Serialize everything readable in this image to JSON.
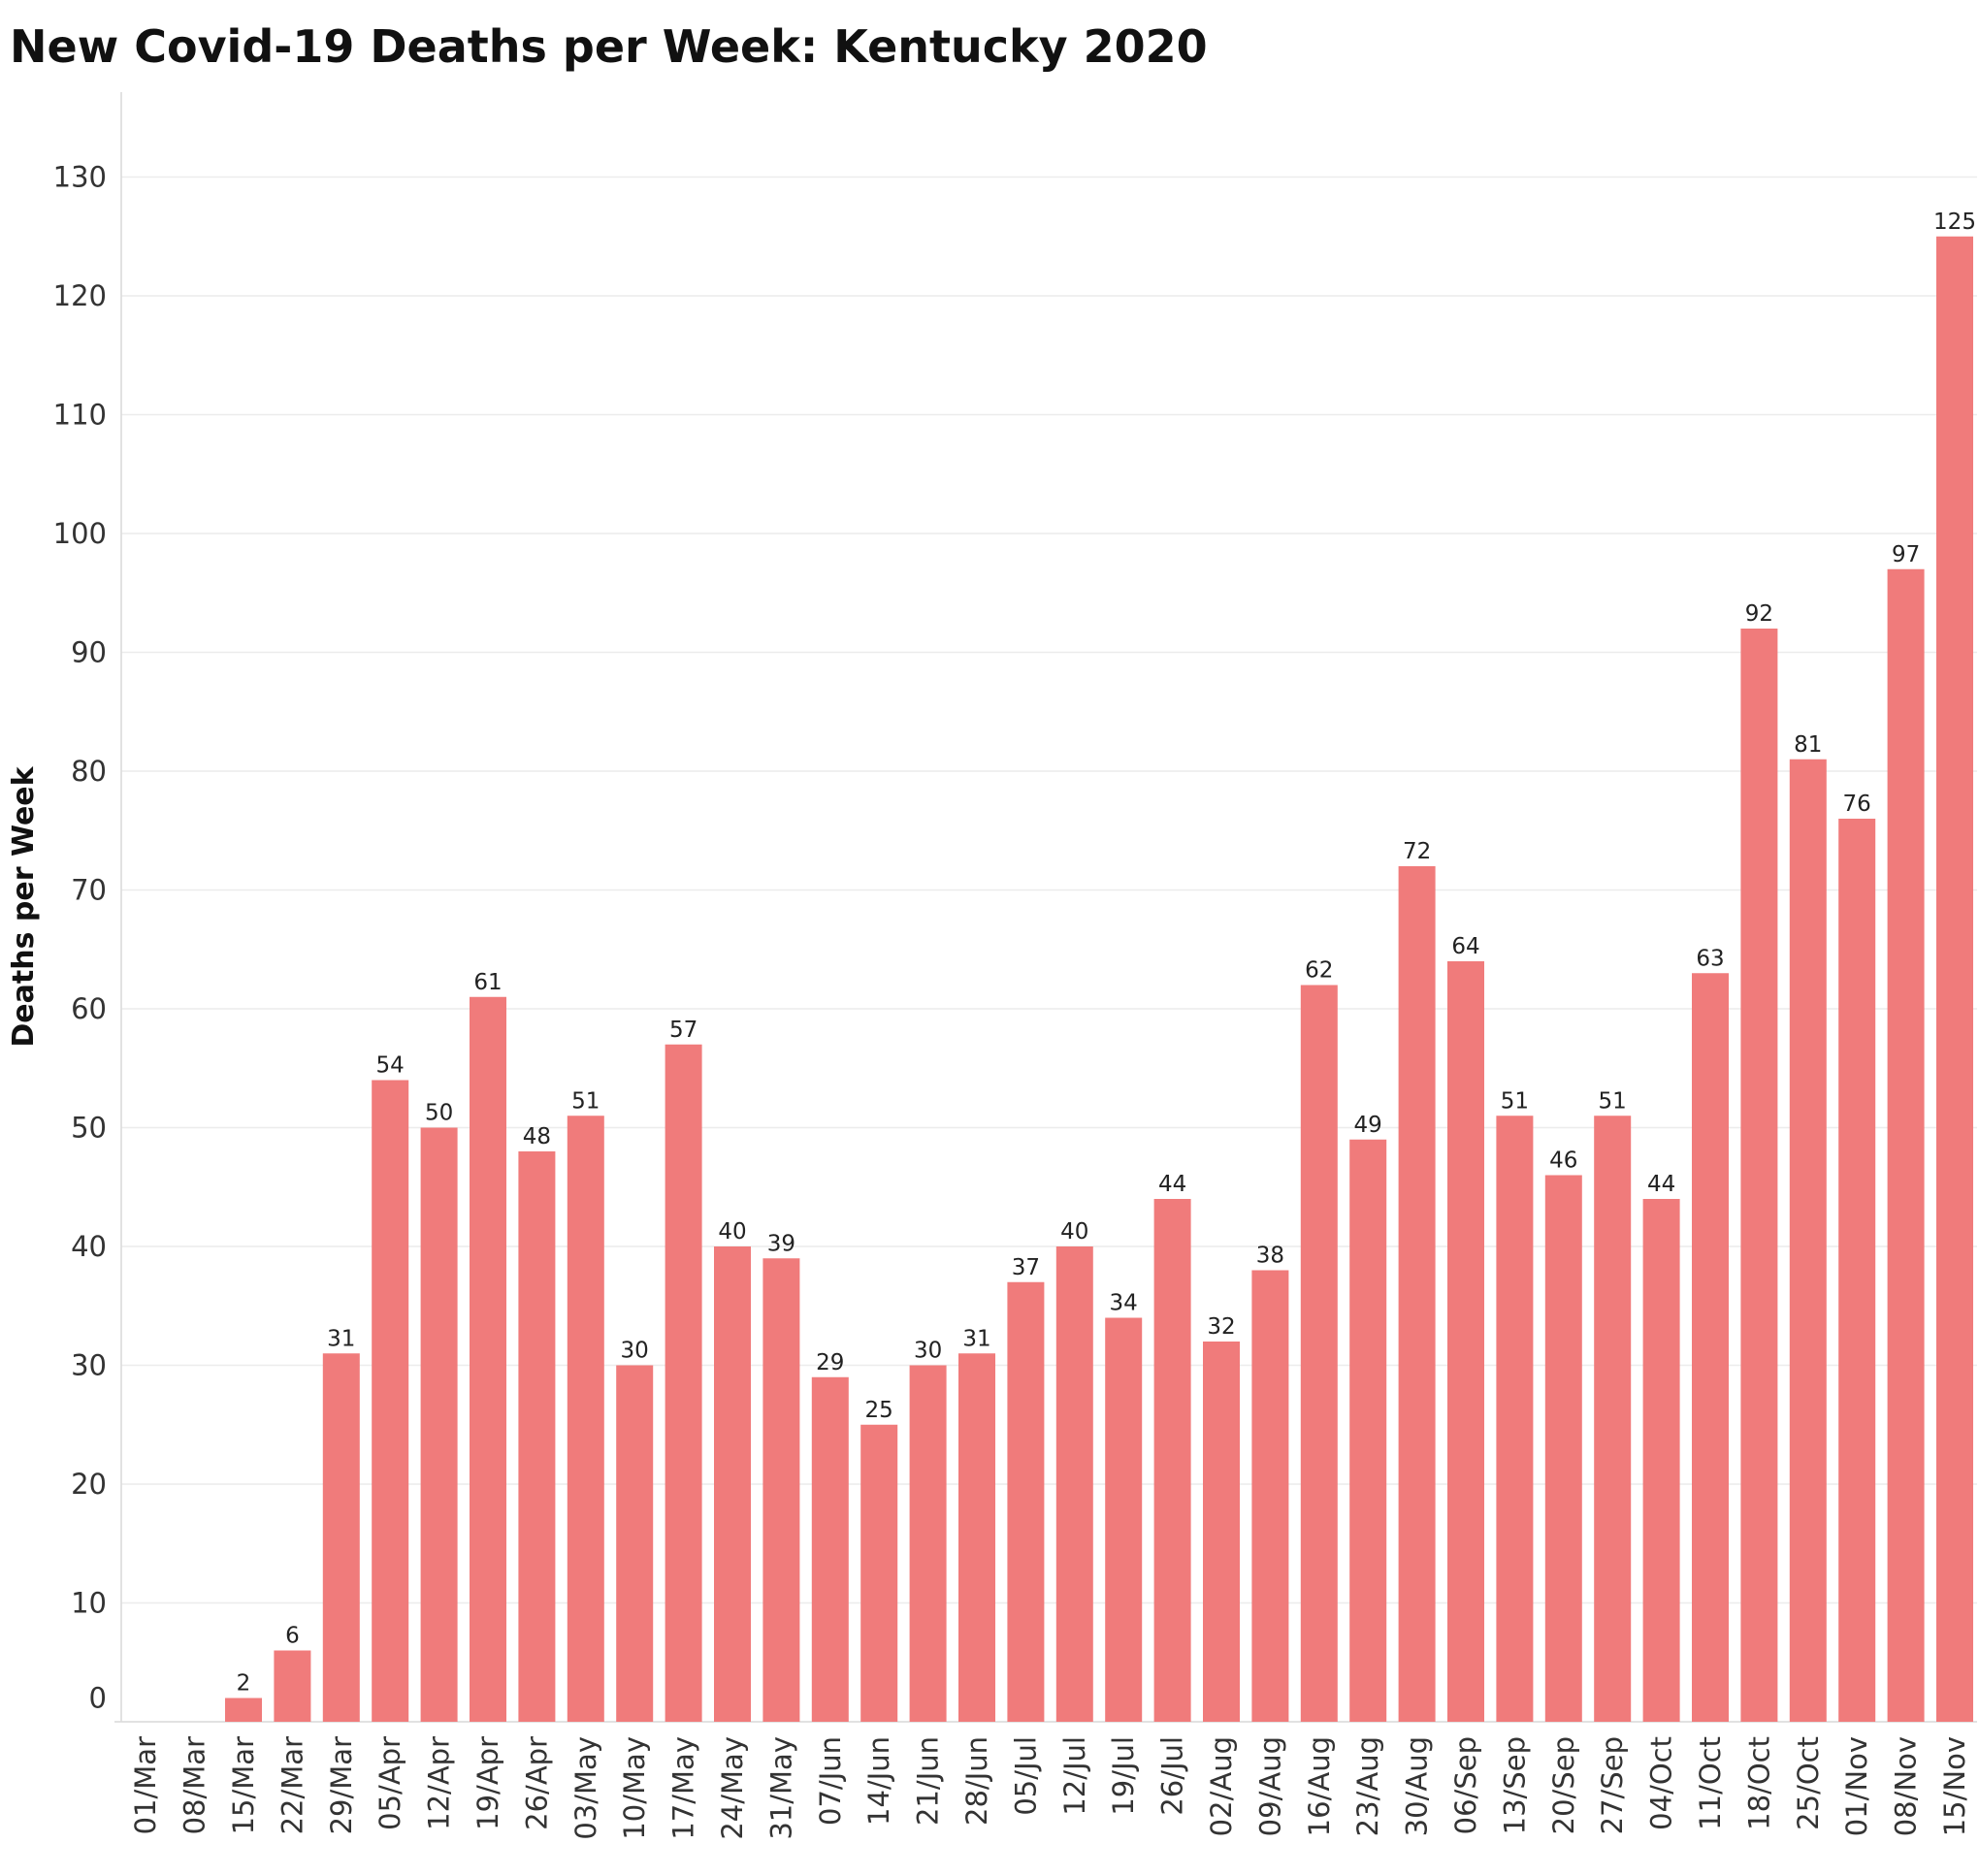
{
  "chart_data": {
    "type": "bar",
    "title": "New Covid-19 Deaths per Week:  Kentucky 2020",
    "xlabel": "",
    "ylabel": "Deaths per Week",
    "yticks": [
      0,
      10,
      20,
      30,
      40,
      50,
      60,
      70,
      80,
      90,
      100,
      110,
      120,
      130
    ],
    "grid": true,
    "bar_color": "#f07b7b",
    "categories": [
      "01/Mar",
      "08/Mar",
      "15/Mar",
      "22/Mar",
      "29/Mar",
      "05/Apr",
      "12/Apr",
      "19/Apr",
      "26/Apr",
      "03/May",
      "10/May",
      "17/May",
      "24/May",
      "31/May",
      "07/Jun",
      "14/Jun",
      "21/Jun",
      "28/Jun",
      "05/Jul",
      "12/Jul",
      "19/Jul",
      "26/Jul",
      "02/Aug",
      "09/Aug",
      "16/Aug",
      "23/Aug",
      "30/Aug",
      "06/Sep",
      "13/Sep",
      "20/Sep",
      "27/Sep",
      "04/Oct",
      "11/Oct",
      "18/Oct",
      "25/Oct",
      "01/Nov",
      "08/Nov",
      "15/Nov"
    ],
    "values": [
      null,
      null,
      2,
      6,
      31,
      54,
      50,
      61,
      48,
      51,
      30,
      57,
      40,
      39,
      29,
      25,
      30,
      31,
      37,
      40,
      34,
      44,
      32,
      38,
      62,
      49,
      72,
      64,
      51,
      46,
      51,
      44,
      63,
      92,
      81,
      76,
      97,
      125
    ]
  }
}
